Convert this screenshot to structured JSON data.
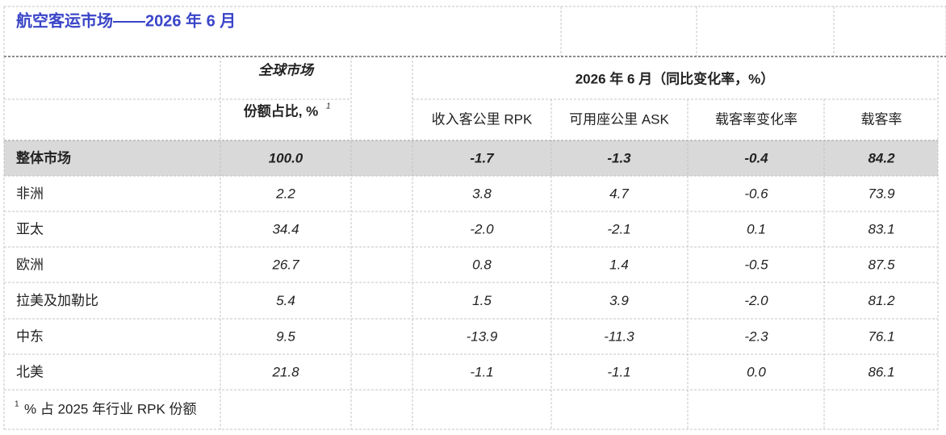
{
  "title": "航空客运市场——2026 年 6 月",
  "header": {
    "group_left": "全球市场",
    "group_right": "2026 年 6 月（同比变化率，%）",
    "share": "份额占比, %",
    "share_note": "1",
    "columns": [
      "收入客公里 RPK",
      "可用座公里 ASK",
      "载客率变化率",
      "载客率"
    ]
  },
  "table": {
    "rows": [
      [
        "整体市场",
        "100.0",
        "-1.7",
        "-1.3",
        "-0.4",
        "84.2"
      ],
      [
        "非洲",
        "2.2",
        "3.8",
        "4.7",
        "-0.6",
        "73.9"
      ],
      [
        "亚太",
        "34.4",
        "-2.0",
        "-2.1",
        "0.1",
        "83.1"
      ],
      [
        "欧洲",
        "26.7",
        "0.8",
        "1.4",
        "-0.5",
        "87.5"
      ],
      [
        "拉美及加勒比",
        "5.4",
        "1.5",
        "3.9",
        "-2.0",
        "81.2"
      ],
      [
        "中东",
        "9.5",
        "-13.9",
        "-11.3",
        "-2.3",
        "76.1"
      ],
      [
        "北美",
        "21.8",
        "-1.1",
        "-1.1",
        "0.0",
        "86.1"
      ]
    ]
  },
  "footnote": {
    "mark": "1",
    "text": "% 占 2025 年行业 RPK 份额"
  }
}
